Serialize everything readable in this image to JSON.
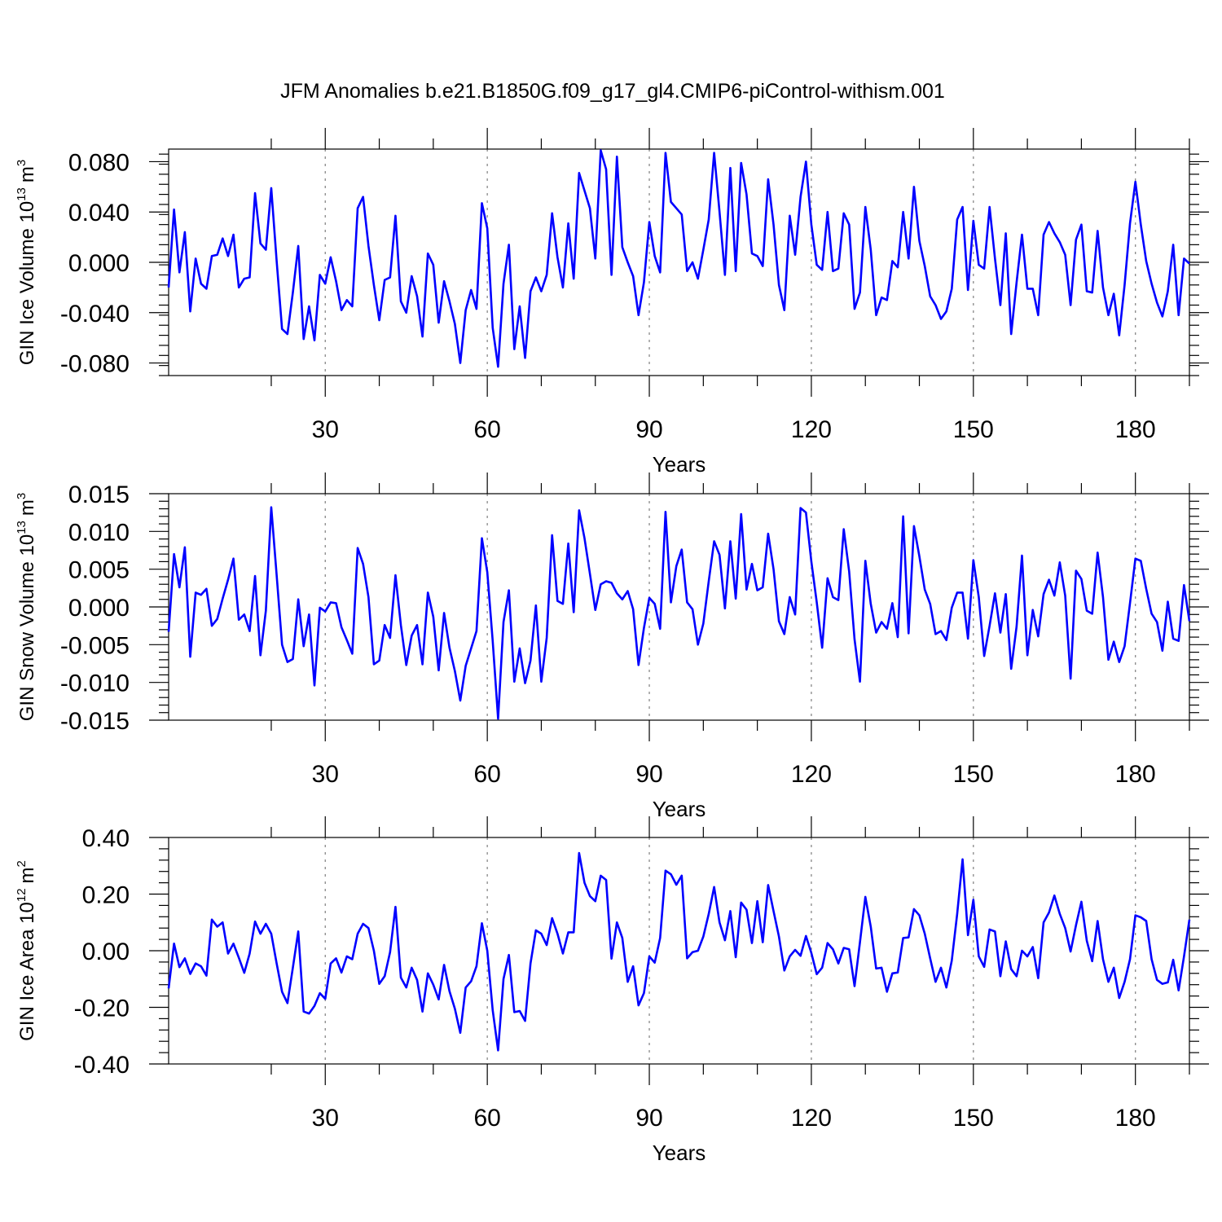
{
  "figure": {
    "title": "JFM Anomalies b.e21.B1850G.f09_g17_gl4.CMIP6-piControl-withism.001"
  },
  "chart_data": [
    {
      "type": "line",
      "title": "",
      "xlabel": "Years",
      "ylabel": "GIN Ice Volume 10",
      "ylabel_exp": "13",
      "ylabel_unit": "m",
      "ylabel_unit_exp": "3",
      "xlim": [
        1,
        190
      ],
      "ylim": [
        -0.09,
        0.09
      ],
      "xticks": [
        30,
        60,
        90,
        120,
        150,
        180
      ],
      "xtick_labels": [
        "30",
        "60",
        "90",
        "120",
        "150",
        "180"
      ],
      "yticks": [
        -0.08,
        -0.04,
        0,
        0.04,
        0.08
      ],
      "ytick_labels": [
        "-0.080",
        "-0.040",
        "0.000",
        "0.040",
        "0.080"
      ],
      "grid": "dashed vertical at x ticks",
      "series": [
        {
          "name": "GIN Ice Volume",
          "color": "#0000ff",
          "x_start": 1,
          "values": [
            -0.02,
            0.042,
            -0.008,
            0.024,
            -0.039,
            0.003,
            -0.017,
            -0.021,
            0.005,
            0.006,
            0.019,
            0.005,
            0.022,
            -0.02,
            -0.013,
            -0.012,
            0.055,
            0.015,
            0.01,
            0.059,
            0.001,
            -0.053,
            -0.057,
            -0.024,
            0.013,
            -0.061,
            -0.035,
            -0.062,
            -0.01,
            -0.017,
            0.004,
            -0.015,
            -0.038,
            -0.03,
            -0.035,
            0.043,
            0.052,
            0.013,
            -0.018,
            -0.046,
            -0.014,
            -0.012,
            0.037,
            -0.031,
            -0.04,
            -0.011,
            -0.027,
            -0.059,
            0.007,
            -0.002,
            -0.048,
            -0.015,
            -0.031,
            -0.049,
            -0.08,
            -0.038,
            -0.022,
            -0.037,
            0.047,
            0.027,
            -0.052,
            -0.083,
            -0.017,
            0.014,
            -0.069,
            -0.035,
            -0.076,
            -0.023,
            -0.012,
            -0.023,
            -0.01,
            0.039,
            0.004,
            -0.02,
            0.031,
            -0.013,
            0.071,
            0.057,
            0.043,
            0.003,
            0.089,
            0.074,
            -0.01,
            0.084,
            0.012,
            0.0,
            -0.011,
            -0.042,
            -0.016,
            0.032,
            0.005,
            -0.008,
            0.087,
            0.048,
            0.043,
            0.038,
            -0.007,
            0.0,
            -0.013,
            0.01,
            0.034,
            0.087,
            0.04,
            -0.01,
            0.075,
            -0.007,
            0.079,
            0.054,
            0.007,
            0.005,
            -0.003,
            0.066,
            0.03,
            -0.018,
            -0.038,
            0.037,
            0.006,
            0.052,
            0.08,
            0.03,
            -0.002,
            -0.006,
            0.04,
            -0.007,
            -0.005,
            0.039,
            0.03,
            -0.037,
            -0.024,
            0.044,
            0.01,
            -0.042,
            -0.028,
            -0.03,
            0.001,
            -0.004,
            0.04,
            0.003,
            0.06,
            0.017,
            -0.003,
            -0.027,
            -0.034,
            -0.045,
            -0.039,
            -0.021,
            0.034,
            0.044,
            -0.022,
            0.033,
            -0.002,
            -0.005,
            0.044,
            0.003,
            -0.034,
            0.023,
            -0.057,
            -0.016,
            0.022,
            -0.021,
            -0.021,
            -0.042,
            0.022,
            0.032,
            0.023,
            0.016,
            0.006,
            -0.034,
            0.018,
            0.03,
            -0.023,
            -0.024,
            0.025,
            -0.02,
            -0.042,
            -0.025,
            -0.058,
            -0.018,
            0.031,
            0.064,
            0.03,
            0.001,
            -0.017,
            -0.032,
            -0.043,
            -0.023,
            0.014,
            -0.042,
            0.003,
            -0.001
          ]
        }
      ]
    },
    {
      "type": "line",
      "title": "",
      "xlabel": "Years",
      "ylabel": "GIN Snow Volume 10",
      "ylabel_exp": "13",
      "ylabel_unit": "m",
      "ylabel_unit_exp": "3",
      "xlim": [
        1,
        190
      ],
      "ylim": [
        -0.015,
        0.015
      ],
      "xticks": [
        30,
        60,
        90,
        120,
        150,
        180
      ],
      "xtick_labels": [
        "30",
        "60",
        "90",
        "120",
        "150",
        "180"
      ],
      "yticks": [
        -0.015,
        -0.01,
        -0.005,
        0,
        0.005,
        0.01,
        0.015
      ],
      "ytick_labels": [
        "-0.015",
        "-0.010",
        "-0.005",
        "0.000",
        "0.005",
        "0.010",
        "0.015"
      ],
      "grid": "dashed vertical at x ticks",
      "series": [
        {
          "name": "GIN Snow Volume",
          "color": "#0000ff",
          "x_start": 1,
          "values": [
            -0.0033,
            0.007,
            0.0026,
            0.0079,
            -0.0066,
            0.0019,
            0.0016,
            0.0024,
            -0.0025,
            -0.0016,
            0.0011,
            0.0036,
            0.0064,
            -0.0017,
            -0.001,
            -0.0032,
            0.0041,
            -0.0064,
            -0.0005,
            0.0132,
            0.0042,
            -0.005,
            -0.0073,
            -0.0069,
            0.001,
            -0.0052,
            -0.001,
            -0.0104,
            -0.0001,
            -0.0006,
            0.0006,
            0.0005,
            -0.0027,
            -0.0044,
            -0.0062,
            0.0078,
            0.0057,
            0.0013,
            -0.0076,
            -0.0071,
            -0.0024,
            -0.0041,
            0.0042,
            -0.0024,
            -0.0077,
            -0.0038,
            -0.0024,
            -0.0076,
            0.0019,
            -0.0013,
            -0.0084,
            -0.0008,
            -0.0054,
            -0.0085,
            -0.0124,
            -0.0078,
            -0.0055,
            -0.0032,
            0.0091,
            0.0046,
            -0.0045,
            -0.0148,
            -0.002,
            0.0022,
            -0.0099,
            -0.0055,
            -0.0101,
            -0.0071,
            0.0002,
            -0.0099,
            -0.0041,
            0.0095,
            0.0008,
            0.0004,
            0.0084,
            -0.0007,
            0.0128,
            0.0091,
            0.0044,
            -0.0004,
            0.003,
            0.0034,
            0.0032,
            0.0018,
            0.001,
            0.0021,
            -0.0003,
            -0.0077,
            -0.0028,
            0.0012,
            0.0004,
            -0.0029,
            0.0126,
            0.0006,
            0.0054,
            0.0076,
            0.0006,
            -0.0003,
            -0.005,
            -0.0022,
            0.0034,
            0.0087,
            0.0069,
            -0.0002,
            0.0087,
            0.0011,
            0.0123,
            0.0023,
            0.0057,
            0.0022,
            0.0026,
            0.0097,
            0.005,
            -0.0019,
            -0.0036,
            0.0013,
            -0.001,
            0.0131,
            0.0125,
            0.006,
            0.0006,
            -0.0054,
            0.0038,
            0.0013,
            0.0009,
            0.0103,
            0.0047,
            -0.0043,
            -0.0099,
            0.0061,
            0.0004,
            -0.0034,
            -0.002,
            -0.0029,
            0.0005,
            -0.004,
            0.012,
            -0.0035,
            0.0107,
            0.0067,
            0.0023,
            0.0004,
            -0.0036,
            -0.0032,
            -0.0044,
            -0.0001,
            0.0019,
            0.0019,
            -0.0042,
            0.0062,
            0.0013,
            -0.0065,
            -0.0025,
            0.0018,
            -0.0034,
            0.0017,
            -0.0082,
            -0.0026,
            0.0068,
            -0.0064,
            -0.0004,
            -0.0039,
            0.0017,
            0.0036,
            0.0015,
            0.0059,
            0.0015,
            -0.0095,
            0.0048,
            0.0037,
            -0.0005,
            -0.0009,
            0.0072,
            0.0013,
            -0.007,
            -0.0046,
            -0.0073,
            -0.0052,
            0.0005,
            0.0064,
            0.0061,
            0.0024,
            -0.0009,
            -0.002,
            -0.0058,
            0.0007,
            -0.0042,
            -0.0045,
            0.0029,
            -0.0019
          ]
        }
      ]
    },
    {
      "type": "line",
      "title": "",
      "xlabel": "Years",
      "ylabel": "GIN Ice Area 10",
      "ylabel_exp": "12",
      "ylabel_unit": "m",
      "ylabel_unit_exp": "2",
      "xlim": [
        1,
        190
      ],
      "ylim": [
        -0.4,
        0.4
      ],
      "xticks": [
        30,
        60,
        90,
        120,
        150,
        180
      ],
      "xtick_labels": [
        "30",
        "60",
        "90",
        "120",
        "150",
        "180"
      ],
      "yticks": [
        -0.4,
        -0.2,
        0,
        0.2,
        0.4
      ],
      "ytick_labels": [
        "-0.40",
        "-0.20",
        "0.00",
        "0.20",
        "0.40"
      ],
      "grid": "dashed vertical at x ticks",
      "series": [
        {
          "name": "GIN Ice Area",
          "color": "#0000ff",
          "x_start": 1,
          "values": [
            -0.133,
            0.025,
            -0.058,
            -0.027,
            -0.082,
            -0.045,
            -0.055,
            -0.088,
            0.11,
            0.085,
            0.1,
            -0.01,
            0.025,
            -0.025,
            -0.078,
            -0.01,
            0.103,
            0.06,
            0.095,
            0.06,
            -0.045,
            -0.145,
            -0.185,
            -0.06,
            0.068,
            -0.215,
            -0.222,
            -0.195,
            -0.15,
            -0.17,
            -0.045,
            -0.027,
            -0.077,
            -0.02,
            -0.03,
            0.06,
            0.095,
            0.08,
            0.0,
            -0.117,
            -0.09,
            -0.005,
            0.155,
            -0.095,
            -0.13,
            -0.06,
            -0.103,
            -0.215,
            -0.08,
            -0.12,
            -0.172,
            -0.05,
            -0.143,
            -0.205,
            -0.29,
            -0.13,
            -0.108,
            -0.055,
            0.097,
            0.0,
            -0.21,
            -0.352,
            -0.1,
            -0.015,
            -0.217,
            -0.213,
            -0.248,
            -0.045,
            0.072,
            0.06,
            0.02,
            0.115,
            0.06,
            -0.01,
            0.065,
            0.065,
            0.345,
            0.24,
            0.193,
            0.175,
            0.265,
            0.25,
            -0.028,
            0.1,
            0.045,
            -0.11,
            -0.055,
            -0.193,
            -0.15,
            -0.02,
            -0.042,
            0.045,
            0.283,
            0.27,
            0.233,
            0.265,
            -0.027,
            -0.005,
            0.0,
            0.05,
            0.13,
            0.225,
            0.1,
            0.037,
            0.14,
            -0.023,
            0.17,
            0.145,
            0.027,
            0.175,
            0.03,
            0.232,
            0.14,
            0.05,
            -0.07,
            -0.02,
            0.003,
            -0.018,
            0.052,
            -0.008,
            -0.083,
            -0.06,
            0.027,
            0.005,
            -0.045,
            0.01,
            0.005,
            -0.125,
            0.03,
            0.19,
            0.085,
            -0.063,
            -0.06,
            -0.145,
            -0.08,
            -0.077,
            0.045,
            0.047,
            0.147,
            0.125,
            0.06,
            -0.027,
            -0.11,
            -0.06,
            -0.13,
            -0.035,
            0.13,
            0.323,
            0.055,
            0.18,
            -0.02,
            -0.057,
            0.075,
            0.068,
            -0.09,
            0.033,
            -0.065,
            -0.09,
            0.0,
            -0.02,
            0.013,
            -0.097,
            0.1,
            0.135,
            0.195,
            0.13,
            0.08,
            -0.003,
            0.09,
            0.173,
            0.035,
            -0.037,
            0.105,
            -0.03,
            -0.11,
            -0.06,
            -0.167,
            -0.11,
            -0.03,
            0.125,
            0.118,
            0.105,
            -0.03,
            -0.103,
            -0.117,
            -0.112,
            -0.032,
            -0.14,
            -0.02,
            0.11
          ]
        }
      ]
    }
  ]
}
